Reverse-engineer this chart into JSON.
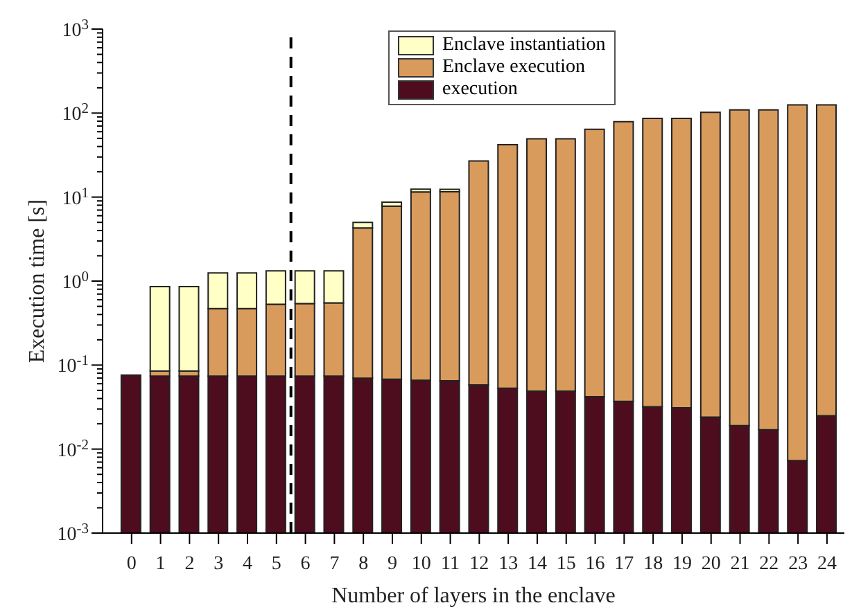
{
  "chart_data": {
    "type": "bar",
    "stacked": true,
    "log": "y",
    "grid": false,
    "legend": "top right",
    "xlabel": "Number of layers in the enclave",
    "ylabel": "Execution time [s]",
    "x": [
      0,
      1,
      2,
      3,
      4,
      5,
      6,
      7,
      8,
      9,
      10,
      11,
      12,
      13,
      14,
      15,
      16,
      17,
      18,
      19,
      20,
      21,
      22,
      23,
      24
    ],
    "xlim": [
      -1,
      24.6
    ],
    "xticks": [
      0,
      1,
      2,
      3,
      4,
      5,
      6,
      7,
      8,
      9,
      10,
      11,
      12,
      13,
      14,
      15,
      16,
      17,
      18,
      19,
      20,
      21,
      22,
      23,
      24
    ],
    "ylim": [
      0.001,
      1000
    ],
    "yticks": [
      {
        "value": 0.001,
        "label": "10$^{-3}$"
      },
      {
        "value": 0.002,
        "label": null
      },
      {
        "value": 0.003,
        "label": null
      },
      {
        "value": 0.004,
        "label": null
      },
      {
        "value": 0.005,
        "label": null
      },
      {
        "value": 0.006,
        "label": null
      },
      {
        "value": 0.007,
        "label": null
      },
      {
        "value": 0.008,
        "label": null
      },
      {
        "value": 0.009,
        "label": null
      },
      {
        "value": 0.01,
        "label": "10$^{-2}$"
      },
      {
        "value": 0.02,
        "label": null
      },
      {
        "value": 0.03,
        "label": null
      },
      {
        "value": 0.04,
        "label": null
      },
      {
        "value": 0.05,
        "label": null
      },
      {
        "value": 0.06,
        "label": null
      },
      {
        "value": 0.07,
        "label": null
      },
      {
        "value": 0.08,
        "label": null
      },
      {
        "value": 0.09,
        "label": null
      },
      {
        "value": 0.1,
        "label": "10$^{-1}$"
      },
      {
        "value": 0.2,
        "label": null
      },
      {
        "value": 0.3,
        "label": null
      },
      {
        "value": 0.4,
        "label": null
      },
      {
        "value": 0.5,
        "label": null
      },
      {
        "value": 0.6,
        "label": null
      },
      {
        "value": 0.7,
        "label": null
      },
      {
        "value": 0.8,
        "label": null
      },
      {
        "value": 0.9,
        "label": null
      },
      {
        "value": 1,
        "label": "10$^{0}$"
      },
      {
        "value": 2,
        "label": null
      },
      {
        "value": 3,
        "label": null
      },
      {
        "value": 4,
        "label": null
      },
      {
        "value": 5,
        "label": null
      },
      {
        "value": 6,
        "label": null
      },
      {
        "value": 7,
        "label": null
      },
      {
        "value": 8,
        "label": null
      },
      {
        "value": 9,
        "label": null
      },
      {
        "value": 10,
        "label": "10$^{1}$"
      },
      {
        "value": 20,
        "label": null
      },
      {
        "value": 30,
        "label": null
      },
      {
        "value": 40,
        "label": null
      },
      {
        "value": 50,
        "label": null
      },
      {
        "value": 60,
        "label": null
      },
      {
        "value": 70,
        "label": null
      },
      {
        "value": 80,
        "label": null
      },
      {
        "value": 90,
        "label": null
      },
      {
        "value": 100,
        "label": "10$^{2}$"
      },
      {
        "value": 200,
        "label": null
      },
      {
        "value": 300,
        "label": null
      },
      {
        "value": 400,
        "label": null
      },
      {
        "value": 500,
        "label": null
      },
      {
        "value": 600,
        "label": null
      },
      {
        "value": 700,
        "label": null
      },
      {
        "value": 800,
        "label": null
      },
      {
        "value": 900,
        "label": null
      },
      {
        "value": 1000,
        "label": "10$^{3}$"
      }
    ],
    "ref_lines": [
      {
        "axis": "x",
        "value": 5.5,
        "color": "#000000",
        "line_style": "dashed"
      }
    ],
    "series": [
      {
        "name": "execution",
        "color": "#4e0d1e",
        "values": [
          0.076,
          0.074,
          0.074,
          0.074,
          0.074,
          0.074,
          0.074,
          0.074,
          0.07,
          0.068,
          0.066,
          0.065,
          0.058,
          0.053,
          0.049,
          0.049,
          0.042,
          0.037,
          0.032,
          0.031,
          0.024,
          0.019,
          0.017,
          0.0073,
          0.025
        ]
      },
      {
        "name": "Enclave execution",
        "color": "#d99b5c",
        "values": [
          null,
          0.011,
          0.011,
          0.396,
          0.396,
          0.456,
          0.466,
          0.476,
          4.23,
          7.73,
          11.43,
          11.5,
          26.9,
          41.9,
          49.4,
          49.4,
          64,
          79,
          86.5,
          86.5,
          102,
          109,
          109,
          125,
          125
        ]
      },
      {
        "name": "Enclave instantiation",
        "color": "#ffffc6",
        "values": [
          null,
          0.775,
          0.775,
          0.78,
          0.78,
          0.79,
          0.78,
          0.77,
          0.7,
          0.9,
          0.9,
          0.8,
          null,
          null,
          null,
          null,
          null,
          null,
          null,
          null,
          null,
          null,
          null,
          null,
          null
        ]
      }
    ]
  }
}
